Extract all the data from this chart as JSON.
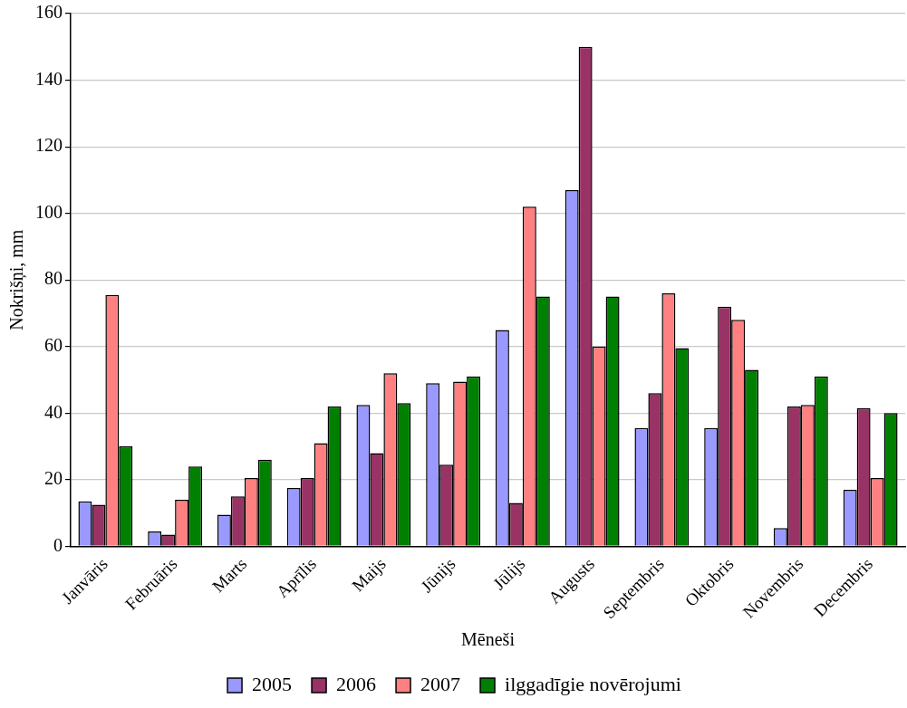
{
  "chart_data": {
    "type": "bar",
    "xlabel": "Mēneši",
    "ylabel": "Nokrišņi, mm",
    "categories": [
      "Janvāris",
      "Februāris",
      "Marts",
      "Aprīlis",
      "Maijs",
      "Jūnijs",
      "Jūlijs",
      "Augusts",
      "Septembris",
      "Oktobris",
      "Novembris",
      "Decembris"
    ],
    "series": [
      {
        "name": "2005",
        "color": "#9999ff",
        "values": [
          13.5,
          4.5,
          9.5,
          17.5,
          42.5,
          49,
          65,
          107,
          35.5,
          35.5,
          5.5,
          17
        ]
      },
      {
        "name": "2006",
        "color": "#993366",
        "values": [
          12.5,
          3.5,
          15,
          20.5,
          28,
          24.5,
          13,
          150,
          46,
          72,
          42,
          41.5
        ]
      },
      {
        "name": "2007",
        "color": "#ff8080",
        "values": [
          75.5,
          14,
          20.5,
          31,
          52,
          49.5,
          102,
          60,
          76,
          68,
          42.5,
          20.5
        ]
      },
      {
        "name": "ilggadīgie novērojumi",
        "color": "#008000",
        "values": [
          30,
          24,
          26,
          42,
          43,
          51,
          75,
          75,
          59.5,
          53,
          51,
          40
        ]
      }
    ],
    "ylim": [
      0,
      160
    ],
    "yticks": [
      0,
      20,
      40,
      60,
      80,
      100,
      120,
      140,
      160
    ],
    "grid": "y",
    "legend": "bottom"
  }
}
